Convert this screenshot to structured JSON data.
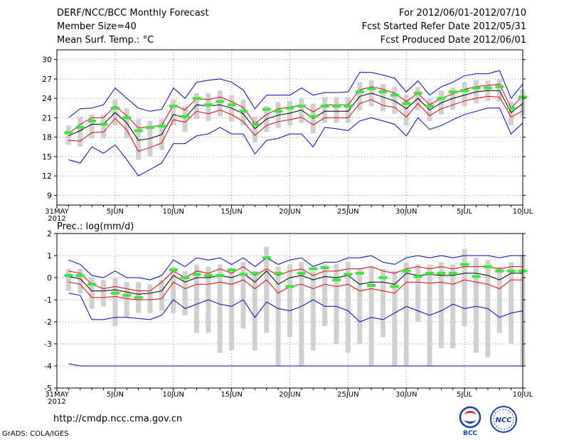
{
  "header": {
    "title": "DERF/NCC/BCC Monthly Forecast",
    "member_size": "Member Size=40",
    "variable": "Mean Surf. Temp.: °C",
    "period": "For 2012/06/01-2012/07/10",
    "started": "Fcst Started Refer Date 2012/05/31",
    "produced": "Fcst Produced Date 2012/06/01"
  },
  "footer": {
    "url": "http://cmdp.ncc.cma.gov.cn",
    "credit": "GrADS: COLA/IGES",
    "logo_left_text": "BCC",
    "logo_right_text": "NCC"
  },
  "colors": {
    "mean": "#000000",
    "spread": "#e8000b",
    "range": "#0000cc",
    "box": "#d0d0d0",
    "marker": "#3ce63c"
  },
  "chart_data": [
    {
      "type": "line",
      "title": "Mean Surf. Temp.: °C",
      "x_tick_labels": [
        "31MAY",
        "5JUN",
        "10JUN",
        "15JUN",
        "20JUN",
        "25JUN",
        "30JUN",
        "5JUL",
        "10JUL"
      ],
      "x_year_label": "2012",
      "x_tick_days": [
        0,
        5,
        10,
        15,
        20,
        25,
        30,
        35,
        40
      ],
      "days": [
        1,
        2,
        3,
        4,
        5,
        6,
        7,
        8,
        9,
        10,
        11,
        12,
        13,
        14,
        15,
        16,
        17,
        18,
        19,
        20,
        21,
        22,
        23,
        24,
        25,
        26,
        27,
        28,
        29,
        30,
        31,
        32,
        33,
        34,
        35,
        36,
        37,
        38,
        39,
        40
      ],
      "ylim": [
        7.5,
        31.5
      ],
      "y_ticks": [
        9,
        12,
        15,
        18,
        21,
        24,
        27,
        30
      ],
      "series": [
        {
          "name": "max",
          "values": [
            21.0,
            22.4,
            22.5,
            23.0,
            25.6,
            24.0,
            22.5,
            22.0,
            22.3,
            25.6,
            24.0,
            26.5,
            26.8,
            27.0,
            26.5,
            25.3,
            22.4,
            24.5,
            24.5,
            24.5,
            25.6,
            24.5,
            24.9,
            24.9,
            25.0,
            28.0,
            28.0,
            27.6,
            27.1,
            25.0,
            26.7,
            24.5,
            25.8,
            26.5,
            27.5,
            27.8,
            27.8,
            28.3,
            24.0,
            26.2
          ]
        },
        {
          "name": "upper",
          "values": [
            18.5,
            20.0,
            21.0,
            21.0,
            22.8,
            21.3,
            19.4,
            19.6,
            19.8,
            23.0,
            22.2,
            24.0,
            23.8,
            24.2,
            23.5,
            22.6,
            20.1,
            21.5,
            22.4,
            22.6,
            23.0,
            21.9,
            23.0,
            23.0,
            23.0,
            25.3,
            25.8,
            25.4,
            24.8,
            23.5,
            24.8,
            23.0,
            24.0,
            24.7,
            25.4,
            25.8,
            26.0,
            26.2,
            22.5,
            24.4
          ]
        },
        {
          "name": "mean",
          "values": [
            18.2,
            19.0,
            20.0,
            20.0,
            21.8,
            20.2,
            17.5,
            17.8,
            18.4,
            21.5,
            21.0,
            23.0,
            22.8,
            23.0,
            22.5,
            21.6,
            19.3,
            20.8,
            21.4,
            21.7,
            22.2,
            20.9,
            22.0,
            22.0,
            22.0,
            24.3,
            24.8,
            24.2,
            23.6,
            22.4,
            24.0,
            22.2,
            23.3,
            24.0,
            24.5,
            25.0,
            25.2,
            25.2,
            21.8,
            23.2
          ]
        },
        {
          "name": "lower",
          "values": [
            17.5,
            17.4,
            18.7,
            18.8,
            20.9,
            19.1,
            15.8,
            16.4,
            17.1,
            20.7,
            20.3,
            22.0,
            21.6,
            22.2,
            21.5,
            20.4,
            18.3,
            19.8,
            20.4,
            20.7,
            21.1,
            19.9,
            21.0,
            21.0,
            21.0,
            23.2,
            23.8,
            22.9,
            22.6,
            21.1,
            23.2,
            21.3,
            22.4,
            23.0,
            23.6,
            24.0,
            24.3,
            24.2,
            21.1,
            22.1
          ]
        },
        {
          "name": "min",
          "values": [
            14.5,
            14.0,
            16.5,
            15.5,
            16.8,
            14.5,
            12.0,
            13.0,
            14.0,
            17.0,
            17.0,
            18.2,
            18.5,
            19.5,
            18.5,
            18.5,
            15.4,
            17.5,
            17.8,
            18.5,
            18.5,
            16.5,
            19.5,
            19.3,
            19.0,
            20.5,
            21.0,
            20.5,
            20.0,
            18.2,
            21.0,
            19.2,
            19.8,
            20.7,
            21.5,
            22.0,
            22.5,
            22.5,
            18.5,
            20.2
          ]
        },
        {
          "name": "box_high",
          "values": [
            19.8,
            21.2,
            21.5,
            21.5,
            23.8,
            22.5,
            20.8,
            20.5,
            20.8,
            23.8,
            22.8,
            24.8,
            24.8,
            25.2,
            24.5,
            23.8,
            21.2,
            22.8,
            23.4,
            23.6,
            24.0,
            23.2,
            24.2,
            24.2,
            24.2,
            26.5,
            26.8,
            26.2,
            25.8,
            24.6,
            25.8,
            24.0,
            25.2,
            25.7,
            26.5,
            26.8,
            26.8,
            27.0,
            23.5,
            25.4
          ]
        },
        {
          "name": "box_low",
          "values": [
            16.8,
            16.5,
            17.8,
            17.8,
            19.8,
            17.8,
            14.5,
            15.0,
            16.0,
            19.8,
            18.8,
            20.8,
            20.5,
            21.2,
            20.4,
            19.8,
            17.2,
            18.8,
            19.4,
            19.8,
            20.2,
            18.6,
            20.2,
            20.2,
            20.2,
            22.2,
            22.8,
            22.0,
            21.6,
            19.8,
            22.2,
            20.5,
            21.5,
            22.2,
            22.8,
            23.2,
            23.6,
            23.5,
            19.8,
            21.2
          ]
        },
        {
          "name": "marker",
          "values": [
            18.7,
            19.5,
            20.5,
            20.0,
            22.5,
            21.0,
            19.0,
            19.5,
            19.7,
            22.8,
            21.2,
            24.0,
            23.0,
            23.5,
            23.0,
            22.0,
            20.0,
            22.3,
            22.0,
            22.5,
            22.8,
            21.2,
            22.8,
            22.8,
            22.8,
            25.0,
            25.5,
            25.0,
            24.5,
            23.2,
            24.8,
            22.8,
            24.0,
            25.0,
            25.2,
            25.6,
            25.6,
            25.8,
            22.5,
            24.2
          ]
        }
      ]
    },
    {
      "type": "line",
      "title": "Prec.: log(mm/d)",
      "x_tick_labels": [
        "31MAY",
        "5JUN",
        "10JUN",
        "15JUN",
        "20JUN",
        "25JUN",
        "30JUN",
        "5JUL",
        "10JUL"
      ],
      "x_year_label": "2012",
      "x_tick_days": [
        0,
        5,
        10,
        15,
        20,
        25,
        30,
        35,
        40
      ],
      "days": [
        1,
        2,
        3,
        4,
        5,
        6,
        7,
        8,
        9,
        10,
        11,
        12,
        13,
        14,
        15,
        16,
        17,
        18,
        19,
        20,
        21,
        22,
        23,
        24,
        25,
        26,
        27,
        28,
        29,
        30,
        31,
        32,
        33,
        34,
        35,
        36,
        37,
        38,
        39,
        40
      ],
      "ylim": [
        -5,
        2
      ],
      "y_ticks": [
        -5,
        -4,
        -3,
        -2,
        -1,
        0,
        1,
        2
      ],
      "series": [
        {
          "name": "max",
          "values": [
            0.8,
            0.6,
            0.1,
            0.0,
            0.3,
            0.0,
            0.0,
            -0.1,
            0.1,
            0.8,
            0.5,
            0.9,
            0.8,
            0.9,
            0.6,
            0.9,
            0.5,
            0.9,
            0.6,
            0.8,
            0.9,
            0.5,
            0.7,
            0.7,
            0.9,
            0.9,
            1.0,
            0.7,
            0.6,
            0.9,
            1.0,
            0.9,
            1.0,
            0.9,
            1.0,
            1.0,
            1.0,
            0.9,
            1.0,
            1.0
          ]
        },
        {
          "name": "upper",
          "values": [
            0.3,
            0.2,
            -0.3,
            -0.5,
            -0.4,
            -0.5,
            -0.6,
            -0.6,
            -0.2,
            0.3,
            0.0,
            0.3,
            0.2,
            0.4,
            0.2,
            0.5,
            0.1,
            0.4,
            0.1,
            0.3,
            0.4,
            0.1,
            0.3,
            0.3,
            0.4,
            0.4,
            0.5,
            0.3,
            0.2,
            0.4,
            0.5,
            0.4,
            0.5,
            0.4,
            0.5,
            0.5,
            0.5,
            0.4,
            0.5,
            0.5
          ]
        },
        {
          "name": "mean",
          "values": [
            0.05,
            -0.05,
            -0.6,
            -0.6,
            -0.55,
            -0.65,
            -0.75,
            -0.7,
            -0.6,
            0.1,
            -0.2,
            0.0,
            0.0,
            0.1,
            0.0,
            0.2,
            -0.2,
            0.3,
            -0.3,
            0.0,
            0.1,
            -0.1,
            0.05,
            0.0,
            0.1,
            -0.3,
            -0.2,
            -0.2,
            -0.3,
            0.2,
            0.1,
            0.15,
            0.1,
            0.1,
            0.2,
            0.2,
            0.1,
            -0.1,
            0.2,
            0.2
          ]
        },
        {
          "name": "lower",
          "values": [
            -0.2,
            -0.3,
            -0.9,
            -0.9,
            -0.85,
            -0.95,
            -1.0,
            -1.0,
            -0.95,
            -0.2,
            -0.5,
            -0.3,
            -0.3,
            -0.2,
            -0.3,
            -0.1,
            -0.5,
            -0.1,
            -0.7,
            -0.4,
            -0.3,
            -0.5,
            -0.3,
            -0.4,
            -0.3,
            -0.6,
            -0.5,
            -0.6,
            -0.7,
            -0.2,
            -0.2,
            -0.25,
            -0.2,
            -0.3,
            -0.1,
            -0.2,
            -0.3,
            -0.5,
            -0.1,
            -0.1
          ]
        },
        {
          "name": "min",
          "values": [
            -0.7,
            -0.8,
            -1.9,
            -1.9,
            -1.8,
            -1.8,
            -1.85,
            -1.9,
            -1.7,
            -1.0,
            -1.4,
            -1.2,
            -1.0,
            -1.2,
            -1.3,
            -1.0,
            -1.8,
            -1.1,
            -1.4,
            -1.5,
            -1.3,
            -1.0,
            -1.3,
            -1.3,
            -1.5,
            -2.0,
            -1.8,
            -1.9,
            -1.6,
            -1.3,
            -1.5,
            -1.7,
            -1.5,
            -1.2,
            -1.4,
            -1.3,
            -1.4,
            -1.8,
            -1.6,
            -1.5
          ]
        },
        {
          "name": "floor",
          "values": [
            -3.9,
            -4.0,
            -4.0,
            -4.0,
            -4.0,
            -4.0,
            -4.0,
            -4.0,
            -4.0,
            -4.0,
            -4.0,
            -4.0,
            -4.0,
            -4.0,
            -4.0,
            -4.0,
            -4.0,
            -4.0,
            -4.0,
            -4.0,
            -4.0,
            -4.0,
            -4.0,
            -4.0,
            -4.0,
            -4.0,
            -4.0,
            -4.0,
            -4.0,
            -4.0,
            -4.0,
            -4.0,
            -4.0,
            -4.0,
            -4.0,
            -4.0,
            -4.0,
            -4.0,
            -4.0,
            -4.0
          ]
        },
        {
          "name": "box_high",
          "values": [
            0.4,
            0.4,
            0.0,
            -0.1,
            0.0,
            -0.2,
            -0.2,
            -0.3,
            -0.1,
            0.5,
            0.3,
            0.6,
            0.5,
            0.6,
            0.4,
            0.7,
            0.3,
            1.4,
            0.5,
            0.6,
            0.7,
            0.3,
            0.6,
            0.6,
            0.7,
            0.4,
            0.5,
            0.4,
            0.3,
            0.7,
            0.6,
            0.6,
            0.7,
            0.6,
            1.3,
            0.9,
            0.8,
            0.5,
            0.7,
            1.0
          ]
        },
        {
          "name": "box_low",
          "values": [
            -0.6,
            -0.7,
            -1.4,
            -1.3,
            -2.2,
            -1.8,
            -1.6,
            -1.6,
            -1.5,
            -1.6,
            -1.7,
            -2.5,
            -2.5,
            -3.4,
            -3.3,
            -2.3,
            -3.3,
            -2.5,
            -4.0,
            -2.7,
            -4.0,
            -3.3,
            -2.2,
            -3.0,
            -3.4,
            -3.0,
            -4.0,
            -2.7,
            -4.0,
            -4.0,
            -2.0,
            -4.0,
            -3.2,
            -3.2,
            -2.2,
            -3.4,
            -3.6,
            -2.5,
            -3.0,
            -4.0
          ]
        },
        {
          "name": "marker",
          "values": [
            0.1,
            0.1,
            -0.3,
            null,
            -0.7,
            -0.8,
            -0.9,
            null,
            null,
            0.35,
            0.0,
            0.15,
            0.1,
            0.1,
            0.35,
            0.15,
            0.2,
            0.9,
            0.2,
            -0.4,
            0.2,
            0.4,
            0.45,
            -0.1,
            0.15,
            0.2,
            -0.35,
            0.0,
            -0.4,
            0.3,
            0.05,
            0.2,
            0.2,
            0.2,
            0.6,
            0.05,
            0.5,
            0.3,
            0.3,
            0.3
          ]
        }
      ]
    }
  ]
}
